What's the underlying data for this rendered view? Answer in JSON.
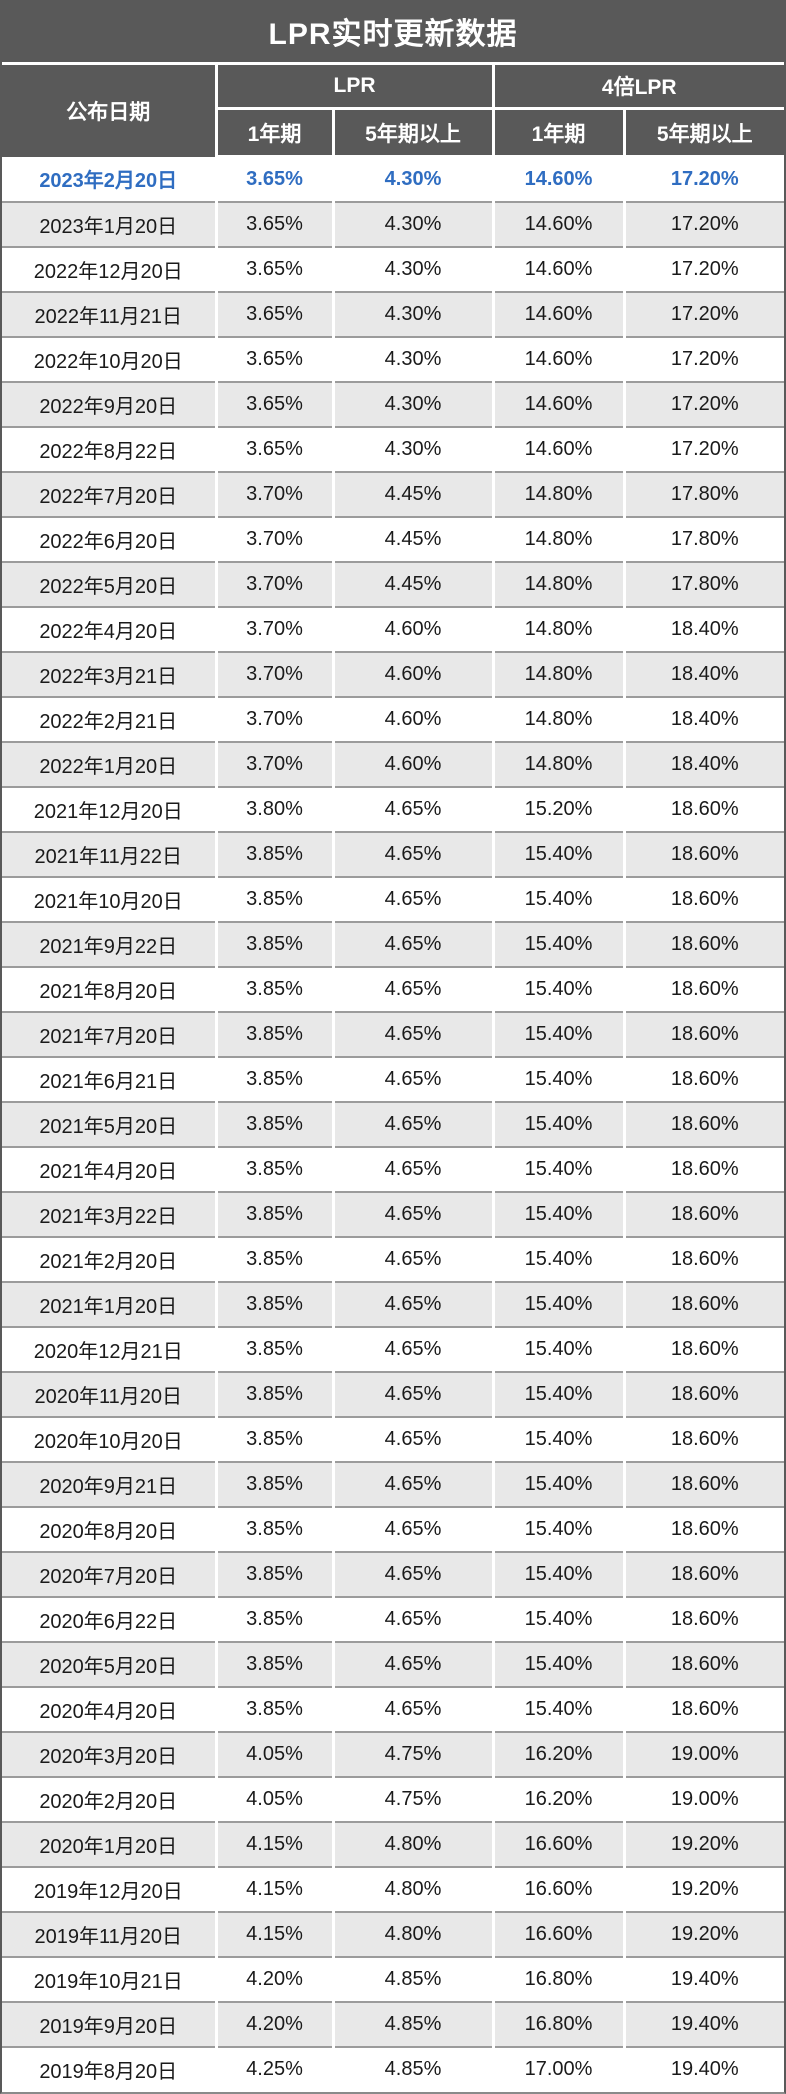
{
  "title": "LPR实时更新数据",
  "colors": {
    "header_bg": "#595959",
    "row_alt_bg": "#e8e8e8",
    "row_bg": "#ffffff",
    "highlight_text": "#2f6dc1",
    "body_text": "#1a1a1a",
    "row_divider": "#9b9b9b"
  },
  "header": {
    "date_col": "公布日期",
    "groups": [
      {
        "label": "LPR"
      },
      {
        "label": "4倍LPR"
      }
    ],
    "sub_cols": [
      "1年期",
      "5年期以上",
      "1年期",
      "5年期以上"
    ]
  },
  "chart_data": {
    "type": "table",
    "title": "LPR实时更新数据",
    "columns": [
      "公布日期",
      "LPR 1年期",
      "LPR 5年期以上",
      "4倍LPR 1年期",
      "4倍LPR 5年期以上"
    ],
    "highlight_row_index": 0,
    "rows": [
      [
        "2023年2月20日",
        "3.65%",
        "4.30%",
        "14.60%",
        "17.20%"
      ],
      [
        "2023年1月20日",
        "3.65%",
        "4.30%",
        "14.60%",
        "17.20%"
      ],
      [
        "2022年12月20日",
        "3.65%",
        "4.30%",
        "14.60%",
        "17.20%"
      ],
      [
        "2022年11月21日",
        "3.65%",
        "4.30%",
        "14.60%",
        "17.20%"
      ],
      [
        "2022年10月20日",
        "3.65%",
        "4.30%",
        "14.60%",
        "17.20%"
      ],
      [
        "2022年9月20日",
        "3.65%",
        "4.30%",
        "14.60%",
        "17.20%"
      ],
      [
        "2022年8月22日",
        "3.65%",
        "4.30%",
        "14.60%",
        "17.20%"
      ],
      [
        "2022年7月20日",
        "3.70%",
        "4.45%",
        "14.80%",
        "17.80%"
      ],
      [
        "2022年6月20日",
        "3.70%",
        "4.45%",
        "14.80%",
        "17.80%"
      ],
      [
        "2022年5月20日",
        "3.70%",
        "4.45%",
        "14.80%",
        "17.80%"
      ],
      [
        "2022年4月20日",
        "3.70%",
        "4.60%",
        "14.80%",
        "18.40%"
      ],
      [
        "2022年3月21日",
        "3.70%",
        "4.60%",
        "14.80%",
        "18.40%"
      ],
      [
        "2022年2月21日",
        "3.70%",
        "4.60%",
        "14.80%",
        "18.40%"
      ],
      [
        "2022年1月20日",
        "3.70%",
        "4.60%",
        "14.80%",
        "18.40%"
      ],
      [
        "2021年12月20日",
        "3.80%",
        "4.65%",
        "15.20%",
        "18.60%"
      ],
      [
        "2021年11月22日",
        "3.85%",
        "4.65%",
        "15.40%",
        "18.60%"
      ],
      [
        "2021年10月20日",
        "3.85%",
        "4.65%",
        "15.40%",
        "18.60%"
      ],
      [
        "2021年9月22日",
        "3.85%",
        "4.65%",
        "15.40%",
        "18.60%"
      ],
      [
        "2021年8月20日",
        "3.85%",
        "4.65%",
        "15.40%",
        "18.60%"
      ],
      [
        "2021年7月20日",
        "3.85%",
        "4.65%",
        "15.40%",
        "18.60%"
      ],
      [
        "2021年6月21日",
        "3.85%",
        "4.65%",
        "15.40%",
        "18.60%"
      ],
      [
        "2021年5月20日",
        "3.85%",
        "4.65%",
        "15.40%",
        "18.60%"
      ],
      [
        "2021年4月20日",
        "3.85%",
        "4.65%",
        "15.40%",
        "18.60%"
      ],
      [
        "2021年3月22日",
        "3.85%",
        "4.65%",
        "15.40%",
        "18.60%"
      ],
      [
        "2021年2月20日",
        "3.85%",
        "4.65%",
        "15.40%",
        "18.60%"
      ],
      [
        "2021年1月20日",
        "3.85%",
        "4.65%",
        "15.40%",
        "18.60%"
      ],
      [
        "2020年12月21日",
        "3.85%",
        "4.65%",
        "15.40%",
        "18.60%"
      ],
      [
        "2020年11月20日",
        "3.85%",
        "4.65%",
        "15.40%",
        "18.60%"
      ],
      [
        "2020年10月20日",
        "3.85%",
        "4.65%",
        "15.40%",
        "18.60%"
      ],
      [
        "2020年9月21日",
        "3.85%",
        "4.65%",
        "15.40%",
        "18.60%"
      ],
      [
        "2020年8月20日",
        "3.85%",
        "4.65%",
        "15.40%",
        "18.60%"
      ],
      [
        "2020年7月20日",
        "3.85%",
        "4.65%",
        "15.40%",
        "18.60%"
      ],
      [
        "2020年6月22日",
        "3.85%",
        "4.65%",
        "15.40%",
        "18.60%"
      ],
      [
        "2020年5月20日",
        "3.85%",
        "4.65%",
        "15.40%",
        "18.60%"
      ],
      [
        "2020年4月20日",
        "3.85%",
        "4.65%",
        "15.40%",
        "18.60%"
      ],
      [
        "2020年3月20日",
        "4.05%",
        "4.75%",
        "16.20%",
        "19.00%"
      ],
      [
        "2020年2月20日",
        "4.05%",
        "4.75%",
        "16.20%",
        "19.00%"
      ],
      [
        "2020年1月20日",
        "4.15%",
        "4.80%",
        "16.60%",
        "19.20%"
      ],
      [
        "2019年12月20日",
        "4.15%",
        "4.80%",
        "16.60%",
        "19.20%"
      ],
      [
        "2019年11月20日",
        "4.15%",
        "4.80%",
        "16.60%",
        "19.20%"
      ],
      [
        "2019年10月21日",
        "4.20%",
        "4.85%",
        "16.80%",
        "19.40%"
      ],
      [
        "2019年9月20日",
        "4.20%",
        "4.85%",
        "16.80%",
        "19.40%"
      ],
      [
        "2019年8月20日",
        "4.25%",
        "4.85%",
        "17.00%",
        "19.40%"
      ]
    ]
  }
}
